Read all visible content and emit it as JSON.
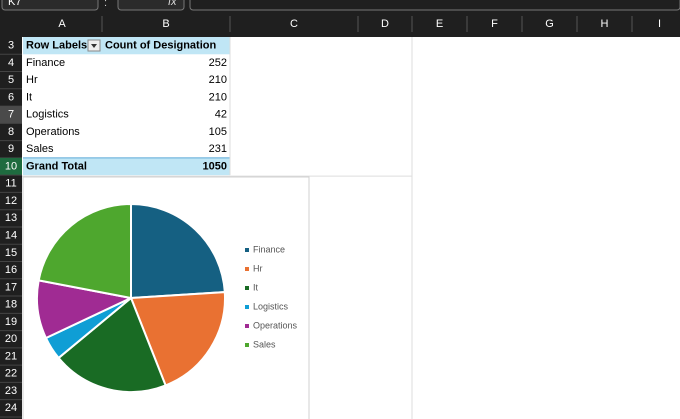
{
  "name_box": "K7",
  "formula_label": "fx",
  "columns": [
    "A",
    "B",
    "C",
    "D",
    "E",
    "F",
    "G",
    "H",
    "I"
  ],
  "rows": [
    3,
    4,
    5,
    6,
    7,
    8,
    9,
    10,
    11,
    12,
    13,
    14,
    15,
    16,
    17,
    18,
    19,
    20,
    21,
    22,
    23,
    24
  ],
  "table": {
    "header": [
      "Row Labels",
      "Count of  Designation"
    ],
    "rows": [
      [
        "Finance",
        252
      ],
      [
        "Hr",
        210
      ],
      [
        "It",
        210
      ],
      [
        "Logistics",
        42
      ],
      [
        "Operations",
        105
      ],
      [
        "Sales",
        231
      ]
    ],
    "total": [
      "Grand Total",
      1050
    ]
  },
  "chart_data": {
    "type": "pie",
    "categories": [
      "Finance",
      "Hr",
      "It",
      "Logistics",
      "Operations",
      "Sales"
    ],
    "values": [
      252,
      210,
      210,
      42,
      105,
      231
    ],
    "colors": [
      "#156082",
      "#e97132",
      "#196b24",
      "#0f9ed5",
      "#a02b93",
      "#4ea72e"
    ],
    "legend": "right"
  }
}
